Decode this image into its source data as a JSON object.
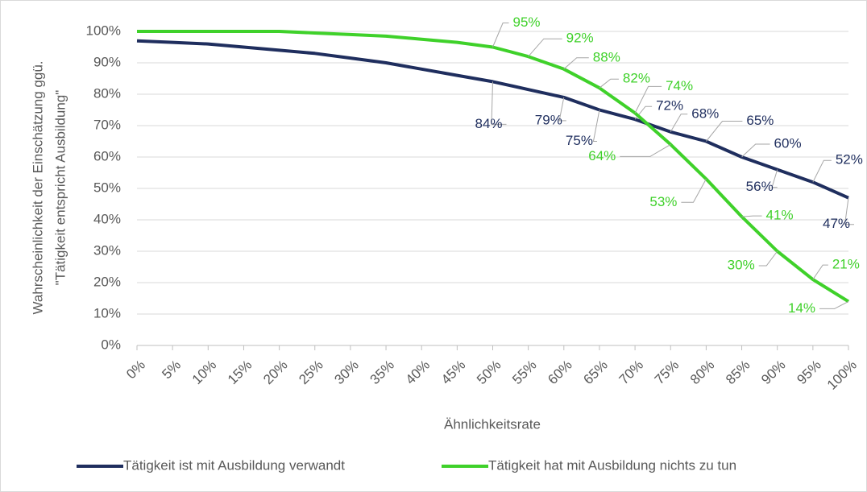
{
  "chart_data": {
    "type": "line",
    "y_label_lines": [
      "Wahrscheinlichkeit der Einschätzung ggü.",
      "\"Tätigkeit entspricht Ausbildung\""
    ],
    "x_label": "Ähnlichkeitsrate",
    "x": [
      0,
      5,
      10,
      15,
      20,
      25,
      30,
      35,
      40,
      45,
      50,
      55,
      60,
      65,
      70,
      75,
      80,
      85,
      90,
      95,
      100
    ],
    "series": [
      {
        "name": "Tätigkeit ist mit Ausbildung verwandt",
        "color": "#1f2e5e",
        "values": [
          97,
          96.5,
          96,
          95,
          94,
          93,
          91.5,
          90,
          88,
          86,
          84,
          81.5,
          79,
          75,
          72,
          68,
          65,
          60,
          56,
          52,
          47
        ],
        "value_labels": [
          null,
          null,
          null,
          null,
          null,
          null,
          null,
          null,
          null,
          null,
          "84%",
          null,
          "79%",
          "75%",
          "72%",
          "68%",
          "65%",
          "60%",
          "56%",
          "52%",
          "47%"
        ]
      },
      {
        "name": "Tätigkeit hat mit Ausbildung nichts zu tun",
        "color": "#3fd12a",
        "values": [
          100,
          100,
          100,
          100,
          100,
          99.5,
          99,
          98.5,
          97.5,
          96.5,
          95,
          92,
          88,
          82,
          74,
          64,
          53,
          41,
          30,
          21,
          14
        ],
        "value_labels": [
          null,
          null,
          null,
          null,
          null,
          null,
          null,
          null,
          null,
          null,
          "95%",
          "92%",
          "88%",
          "82%",
          "74%",
          "64%",
          "53%",
          "41%",
          "30%",
          "21%",
          "14%"
        ]
      }
    ],
    "xlim": [
      0,
      100
    ],
    "xticks": [
      {
        "value": 0,
        "label": "0%"
      },
      {
        "value": 5,
        "label": "5%"
      },
      {
        "value": 10,
        "label": "10%"
      },
      {
        "value": 15,
        "label": "15%"
      },
      {
        "value": 20,
        "label": "20%"
      },
      {
        "value": 25,
        "label": "25%"
      },
      {
        "value": 30,
        "label": "30%"
      },
      {
        "value": 35,
        "label": "35%"
      },
      {
        "value": 40,
        "label": "40%"
      },
      {
        "value": 45,
        "label": "45%"
      },
      {
        "value": 50,
        "label": "50%"
      },
      {
        "value": 55,
        "label": "55%"
      },
      {
        "value": 60,
        "label": "60%"
      },
      {
        "value": 65,
        "label": "65%"
      },
      {
        "value": 70,
        "label": "70%"
      },
      {
        "value": 75,
        "label": "75%"
      },
      {
        "value": 80,
        "label": "80%"
      },
      {
        "value": 85,
        "label": "85%"
      },
      {
        "value": 90,
        "label": "90%"
      },
      {
        "value": 95,
        "label": "95%"
      },
      {
        "value": 100,
        "label": "100%"
      }
    ],
    "ylim": [
      0,
      100
    ],
    "yticks": [
      {
        "value": 0,
        "label": "0%"
      },
      {
        "value": 10,
        "label": "10%"
      },
      {
        "value": 20,
        "label": "20%"
      },
      {
        "value": 30,
        "label": "30%"
      },
      {
        "value": 40,
        "label": "40%"
      },
      {
        "value": 50,
        "label": "50%"
      },
      {
        "value": 60,
        "label": "60%"
      },
      {
        "value": 70,
        "label": "70%"
      },
      {
        "value": 80,
        "label": "80%"
      },
      {
        "value": 90,
        "label": "90%"
      },
      {
        "value": 100,
        "label": "100%"
      }
    ],
    "grid": true,
    "legend": "bottom"
  }
}
